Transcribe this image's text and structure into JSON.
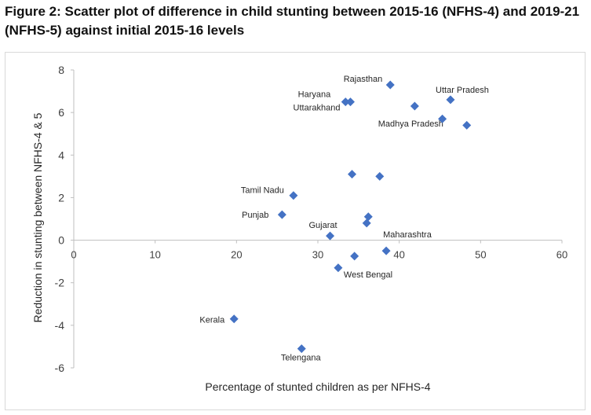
{
  "figure": {
    "title": "Figure 2: Scatter plot of difference in child stunting between 2015-16 (NFHS-4) and 2019-21 (NFHS-5) against initial 2015-16 levels"
  },
  "chart_data": {
    "type": "scatter",
    "xlabel": "Percentage of stunted children as per NFHS-4",
    "ylabel": "Reduction in stunting between NFHS-4 & 5",
    "xlim": [
      0,
      60
    ],
    "ylim": [
      -6,
      8
    ],
    "xticks": [
      0,
      10,
      20,
      30,
      40,
      50,
      60
    ],
    "yticks": [
      -6,
      -4,
      -2,
      0,
      2,
      4,
      6,
      8
    ],
    "grid": "none",
    "legend": "none",
    "marker": "diamond",
    "marker_color": "#4472C4",
    "points": [
      {
        "x": 38.9,
        "y": 7.3,
        "label": "Rajasthan"
      },
      {
        "x": 46.3,
        "y": 6.6,
        "label": "Uttar Pradesh"
      },
      {
        "x": 33.4,
        "y": 6.5,
        "label": "Haryana"
      },
      {
        "x": 34.0,
        "y": 6.5,
        "label": "Uttarakhand"
      },
      {
        "x": 41.9,
        "y": 6.3,
        "label": "Madhya Pradesh"
      },
      {
        "x": 45.3,
        "y": 5.7,
        "label": ""
      },
      {
        "x": 48.3,
        "y": 5.4,
        "label": ""
      },
      {
        "x": 34.2,
        "y": 3.1,
        "label": ""
      },
      {
        "x": 37.6,
        "y": 3.0,
        "label": ""
      },
      {
        "x": 27.0,
        "y": 2.1,
        "label": "Tamil Nadu"
      },
      {
        "x": 25.6,
        "y": 1.2,
        "label": "Punjab"
      },
      {
        "x": 36.2,
        "y": 1.1,
        "label": ""
      },
      {
        "x": 36.0,
        "y": 0.8,
        "label": ""
      },
      {
        "x": 31.5,
        "y": 0.2,
        "label": "Gujarat"
      },
      {
        "x": 38.4,
        "y": -0.5,
        "label": "Maharashtra"
      },
      {
        "x": 34.5,
        "y": -0.75,
        "label": ""
      },
      {
        "x": 32.5,
        "y": -1.3,
        "label": "West Bengal"
      },
      {
        "x": 19.7,
        "y": -3.7,
        "label": "Kerala"
      },
      {
        "x": 28.0,
        "y": -5.1,
        "label": "Telengana"
      }
    ]
  }
}
